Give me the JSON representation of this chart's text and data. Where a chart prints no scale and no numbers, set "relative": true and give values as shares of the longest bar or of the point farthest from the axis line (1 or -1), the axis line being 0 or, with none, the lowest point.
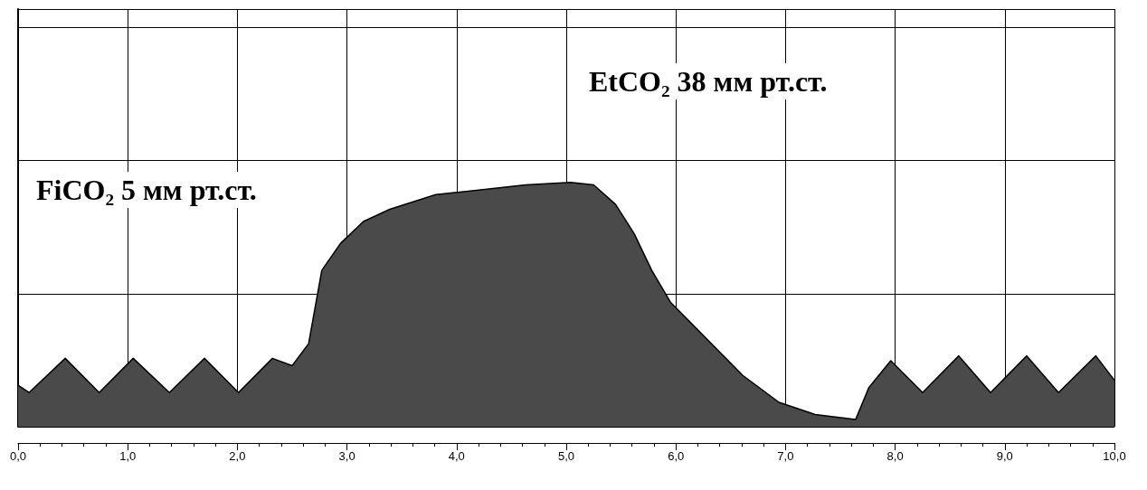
{
  "chart_data": {
    "type": "area",
    "relative": true,
    "color": "#4a4a4a",
    "x": [
      0,
      0.1,
      0.43,
      0.74,
      1.05,
      1.38,
      1.7,
      2.01,
      2.32,
      2.5,
      2.65,
      2.77,
      2.94,
      3.15,
      3.39,
      3.81,
      4.22,
      4.63,
      5.04,
      5.25,
      5.45,
      5.62,
      5.78,
      5.95,
      6.28,
      6.61,
      6.94,
      7.27,
      7.64,
      7.76,
      7.96,
      8.25,
      8.58,
      8.87,
      9.2,
      9.49,
      9.83,
      10.0
    ],
    "values": [
      0.17,
      0.14,
      0.28,
      0.14,
      0.28,
      0.14,
      0.28,
      0.14,
      0.28,
      0.25,
      0.34,
      0.64,
      0.75,
      0.84,
      0.89,
      0.95,
      0.97,
      0.99,
      1.0,
      0.99,
      0.91,
      0.79,
      0.64,
      0.51,
      0.36,
      0.21,
      0.1,
      0.05,
      0.03,
      0.16,
      0.27,
      0.14,
      0.29,
      0.14,
      0.29,
      0.14,
      0.29,
      0.19
    ],
    "xlim": [
      0,
      10
    ],
    "xticks": [
      {
        "value": 0,
        "label": "0,0"
      },
      {
        "value": 1,
        "label": "1,0"
      },
      {
        "value": 2,
        "label": "2,0"
      },
      {
        "value": 3,
        "label": "3,0"
      },
      {
        "value": 4,
        "label": "4,0"
      },
      {
        "value": 5,
        "label": "5,0"
      },
      {
        "value": 6,
        "label": "6,0"
      },
      {
        "value": 7,
        "label": "7,0"
      },
      {
        "value": 8,
        "label": "8,0"
      },
      {
        "value": 9,
        "label": "9,0"
      },
      {
        "value": 10,
        "label": "10,0"
      }
    ],
    "grid": true,
    "annotations": [
      "FiCO₂ 5 мм рт.ст.",
      "EtCO₂ 38 мм рт.ст."
    ]
  }
}
